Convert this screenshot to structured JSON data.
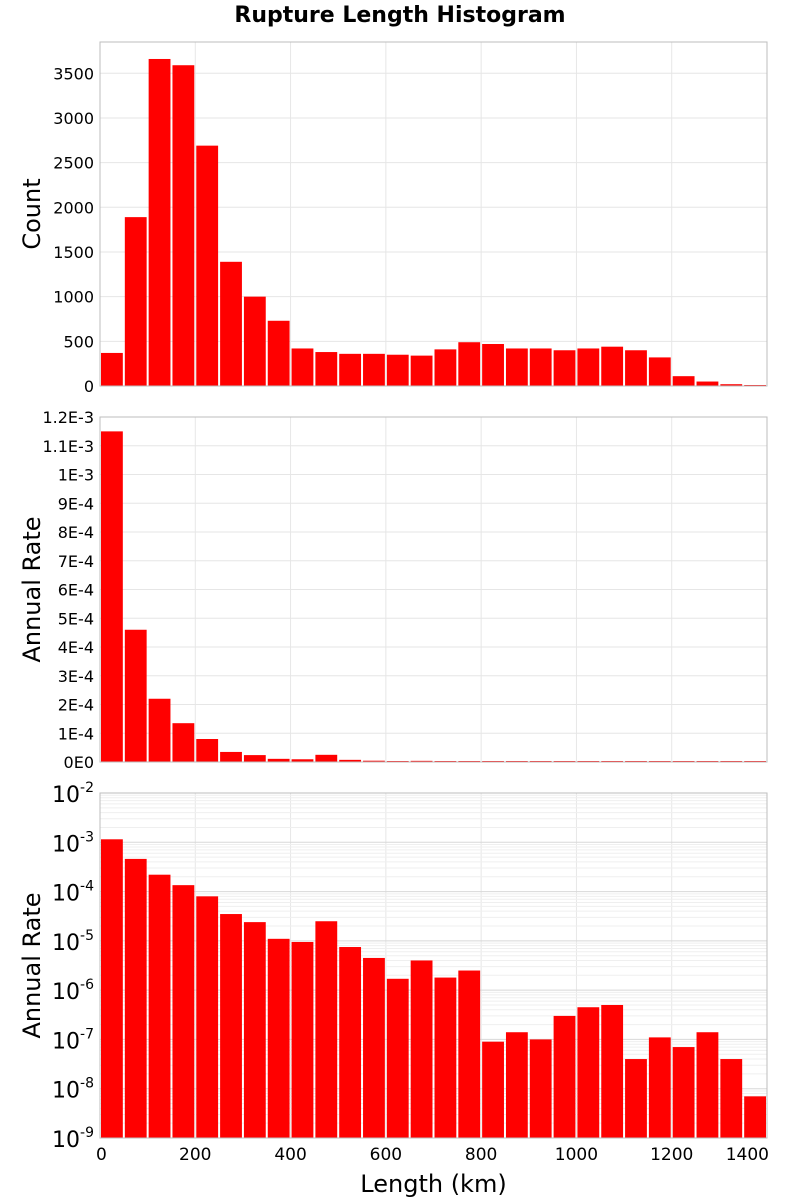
{
  "chart_data": [
    {
      "type": "bar",
      "title": "Rupture Length Histogram",
      "ylabel": "Count",
      "xlabel": "",
      "xlim": [
        0,
        1400
      ],
      "ylim": [
        0,
        3850
      ],
      "bin_width": 50,
      "yticks": [
        0,
        500,
        1000,
        1500,
        2000,
        2500,
        3000,
        3500
      ],
      "ytick_labels": [
        "0",
        "500",
        "1000",
        "1500",
        "2000",
        "2500",
        "3000",
        "3500"
      ],
      "grid": true,
      "bar_color": "#ff0000",
      "x": [
        25,
        75,
        125,
        175,
        225,
        275,
        325,
        375,
        425,
        475,
        525,
        575,
        625,
        675,
        725,
        775,
        825,
        875,
        925,
        975,
        1025,
        1075,
        1125,
        1175,
        1225,
        1275,
        1325,
        1375
      ],
      "values": [
        370,
        1890,
        3660,
        3590,
        2690,
        1390,
        1000,
        730,
        420,
        380,
        360,
        360,
        350,
        340,
        410,
        490,
        470,
        420,
        420,
        400,
        420,
        440,
        400,
        320,
        110,
        50,
        20,
        5
      ]
    },
    {
      "type": "bar",
      "title": "",
      "ylabel": "Annual Rate",
      "xlabel": "",
      "xlim": [
        0,
        1400
      ],
      "ylim": [
        0,
        0.0012
      ],
      "bin_width": 50,
      "yticks": [
        0,
        0.0001,
        0.0002,
        0.0003,
        0.0004,
        0.0005,
        0.0006,
        0.0007,
        0.0008,
        0.0009,
        0.001,
        0.0011,
        0.0012
      ],
      "ytick_labels": [
        "0E0",
        "1E-4",
        "2E-4",
        "3E-4",
        "4E-4",
        "5E-4",
        "6E-4",
        "7E-4",
        "8E-4",
        "9E-4",
        "1E-3",
        "1.1E-3",
        "1.2E-3"
      ],
      "grid": true,
      "bar_color": "#ff0000",
      "x": [
        25,
        75,
        125,
        175,
        225,
        275,
        325,
        375,
        425,
        475,
        525,
        575,
        625,
        675,
        725,
        775,
        825,
        875,
        925,
        975,
        1025,
        1075,
        1125,
        1175,
        1225,
        1275,
        1325,
        1375
      ],
      "values": [
        0.00115,
        0.00046,
        0.00022,
        0.000135,
        8e-05,
        3.5e-05,
        2.4e-05,
        1.1e-05,
        9.5e-06,
        2.5e-05,
        7.5e-06,
        4.5e-06,
        1.7e-06,
        4e-06,
        1.8e-06,
        2.5e-06,
        9e-08,
        1.4e-07,
        1e-07,
        3e-07,
        4.5e-07,
        5e-07,
        4e-08,
        1.1e-07,
        7e-08,
        1.4e-07,
        4e-08,
        7e-09
      ]
    },
    {
      "type": "bar",
      "title": "",
      "ylabel": "Annual Rate",
      "xlabel": "Length (km)",
      "xlim": [
        0,
        1400
      ],
      "ylim": [
        1e-09,
        0.01
      ],
      "yscale": "log",
      "bin_width": 50,
      "ytick_base": "10",
      "ytick_exponents": [
        "-9",
        "-8",
        "-7",
        "-6",
        "-5",
        "-4",
        "-3",
        "-2"
      ],
      "xticks": [
        0,
        200,
        400,
        600,
        800,
        1000,
        1200,
        1400
      ],
      "xtick_labels": [
        "0",
        "200",
        "400",
        "600",
        "800",
        "1000",
        "1200",
        "1400"
      ],
      "grid": true,
      "bar_color": "#ff0000",
      "x": [
        25,
        75,
        125,
        175,
        225,
        275,
        325,
        375,
        425,
        475,
        525,
        575,
        625,
        675,
        725,
        775,
        825,
        875,
        925,
        975,
        1025,
        1075,
        1125,
        1175,
        1225,
        1275,
        1325,
        1375
      ],
      "values": [
        0.00115,
        0.00046,
        0.00022,
        0.000135,
        8e-05,
        3.5e-05,
        2.4e-05,
        1.1e-05,
        9.5e-06,
        2.5e-05,
        7.5e-06,
        4.5e-06,
        1.7e-06,
        4e-06,
        1.8e-06,
        2.5e-06,
        9e-08,
        1.4e-07,
        1e-07,
        3e-07,
        4.5e-07,
        5e-07,
        4e-08,
        1.1e-07,
        7e-08,
        1.4e-07,
        4e-08,
        7e-09
      ]
    }
  ]
}
